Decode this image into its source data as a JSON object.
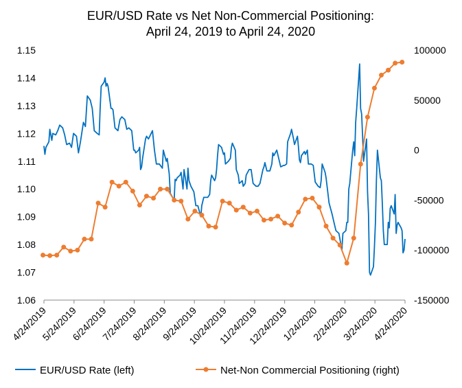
{
  "chart_data": {
    "type": "line",
    "title": "EUR/USD Rate vs Net Non-Commercial Positioning:",
    "subtitle": "April 24, 2019 to April 24, 2020",
    "x_tick_labels": [
      "4/24/2019",
      "5/24/2019",
      "6/24/2019",
      "7/24/2019",
      "8/24/2019",
      "9/24/2019",
      "10/24/2019",
      "11/24/2019",
      "12/24/2019",
      "1/24/2020",
      "2/24/2020",
      "3/24/2020",
      "4/24/2020"
    ],
    "x_range": [
      "2019-04-24",
      "2020-04-24"
    ],
    "y_left_ticks": [
      "1.06",
      "1.07",
      "1.08",
      "1.09",
      "1.10",
      "1.11",
      "1.12",
      "1.13",
      "1.14",
      "1.15"
    ],
    "y_left_range": [
      1.06,
      1.15
    ],
    "y_right_ticks": [
      "-150000",
      "-100000",
      "-50000",
      "0",
      "50000",
      "100000"
    ],
    "y_right_range": [
      -150000,
      100000
    ],
    "grid": false,
    "legend_position": "bottom",
    "series": [
      {
        "name": "EUR/USD Rate (left)",
        "axis": "left",
        "color": "#0070C0",
        "points": [
          [
            "2019-04-24",
            1.1155
          ],
          [
            "2019-04-25",
            1.1125
          ],
          [
            "2019-04-26",
            1.115
          ],
          [
            "2019-04-29",
            1.117
          ],
          [
            "2019-04-30",
            1.1215
          ],
          [
            "2019-05-01",
            1.1195
          ],
          [
            "2019-05-02",
            1.1175
          ],
          [
            "2019-05-03",
            1.12
          ],
          [
            "2019-05-06",
            1.1195
          ],
          [
            "2019-05-08",
            1.121
          ],
          [
            "2019-05-10",
            1.123
          ],
          [
            "2019-05-13",
            1.122
          ],
          [
            "2019-05-15",
            1.1195
          ],
          [
            "2019-05-17",
            1.116
          ],
          [
            "2019-05-20",
            1.1165
          ],
          [
            "2019-05-22",
            1.115
          ],
          [
            "2019-05-24",
            1.12
          ],
          [
            "2019-05-27",
            1.119
          ],
          [
            "2019-05-29",
            1.113
          ],
          [
            "2019-05-31",
            1.117
          ],
          [
            "2019-06-03",
            1.124
          ],
          [
            "2019-06-05",
            1.1225
          ],
          [
            "2019-06-07",
            1.1335
          ],
          [
            "2019-06-10",
            1.132
          ],
          [
            "2019-06-12",
            1.129
          ],
          [
            "2019-06-14",
            1.121
          ],
          [
            "2019-06-17",
            1.12
          ],
          [
            "2019-06-19",
            1.1195
          ],
          [
            "2019-06-20",
            1.129
          ],
          [
            "2019-06-21",
            1.137
          ],
          [
            "2019-06-24",
            1.1385
          ],
          [
            "2019-06-25",
            1.14
          ],
          [
            "2019-06-26",
            1.137
          ],
          [
            "2019-06-27",
            1.138
          ],
          [
            "2019-06-28",
            1.137
          ],
          [
            "2019-07-01",
            1.129
          ],
          [
            "2019-07-02",
            1.129
          ],
          [
            "2019-07-03",
            1.1285
          ],
          [
            "2019-07-05",
            1.122
          ],
          [
            "2019-07-08",
            1.121
          ],
          [
            "2019-07-10",
            1.125
          ],
          [
            "2019-07-12",
            1.126
          ],
          [
            "2019-07-15",
            1.125
          ],
          [
            "2019-07-17",
            1.1215
          ],
          [
            "2019-07-19",
            1.122
          ],
          [
            "2019-07-22",
            1.121
          ],
          [
            "2019-07-24",
            1.114
          ],
          [
            "2019-07-25",
            1.114
          ],
          [
            "2019-07-26",
            1.113
          ],
          [
            "2019-07-29",
            1.114
          ],
          [
            "2019-07-30",
            1.115
          ],
          [
            "2019-07-31",
            1.107
          ],
          [
            "2019-08-01",
            1.108
          ],
          [
            "2019-08-02",
            1.111
          ],
          [
            "2019-08-05",
            1.118
          ],
          [
            "2019-08-06",
            1.119
          ],
          [
            "2019-08-08",
            1.118
          ],
          [
            "2019-08-12",
            1.121
          ],
          [
            "2019-08-14",
            1.114
          ],
          [
            "2019-08-16",
            1.109
          ],
          [
            "2019-08-19",
            1.109
          ],
          [
            "2019-08-22",
            1.1075
          ],
          [
            "2019-08-23",
            1.114
          ],
          [
            "2019-08-26",
            1.11
          ],
          [
            "2019-08-27",
            1.111
          ],
          [
            "2019-08-29",
            1.1055
          ],
          [
            "2019-08-30",
            1.0985
          ],
          [
            "2019-09-03",
            1.096
          ],
          [
            "2019-09-04",
            1.1035
          ],
          [
            "2019-09-05",
            1.103
          ],
          [
            "2019-09-06",
            1.104
          ],
          [
            "2019-09-09",
            1.105
          ],
          [
            "2019-09-10",
            1.106
          ],
          [
            "2019-09-12",
            1.1
          ],
          [
            "2019-09-13",
            1.107
          ],
          [
            "2019-09-16",
            1.1
          ],
          [
            "2019-09-17",
            1.1075
          ],
          [
            "2019-09-18",
            1.103
          ],
          [
            "2019-09-20",
            1.101
          ],
          [
            "2019-09-23",
            1.099
          ],
          [
            "2019-09-25",
            1.094
          ],
          [
            "2019-09-27",
            1.094
          ],
          [
            "2019-09-30",
            1.09
          ],
          [
            "2019-10-01",
            1.094
          ],
          [
            "2019-10-03",
            1.097
          ],
          [
            "2019-10-07",
            1.097
          ],
          [
            "2019-10-09",
            1.098
          ],
          [
            "2019-10-10",
            1.103
          ],
          [
            "2019-10-11",
            1.105
          ],
          [
            "2019-10-14",
            1.103
          ],
          [
            "2019-10-15",
            1.104
          ],
          [
            "2019-10-16",
            1.107
          ],
          [
            "2019-10-17",
            1.112
          ],
          [
            "2019-10-18",
            1.116
          ],
          [
            "2019-10-21",
            1.115
          ],
          [
            "2019-10-23",
            1.1125
          ],
          [
            "2019-10-24",
            1.113
          ],
          [
            "2019-10-25",
            1.109
          ],
          [
            "2019-10-28",
            1.11
          ],
          [
            "2019-10-30",
            1.111
          ],
          [
            "2019-10-31",
            1.115
          ],
          [
            "2019-11-01",
            1.1165
          ],
          [
            "2019-11-04",
            1.114
          ],
          [
            "2019-11-05",
            1.107
          ],
          [
            "2019-11-07",
            1.105
          ],
          [
            "2019-11-08",
            1.102
          ],
          [
            "2019-11-11",
            1.103
          ],
          [
            "2019-11-12",
            1.101
          ],
          [
            "2019-11-14",
            1.102
          ],
          [
            "2019-11-15",
            1.105
          ],
          [
            "2019-11-18",
            1.107
          ],
          [
            "2019-11-20",
            1.107
          ],
          [
            "2019-11-22",
            1.102
          ],
          [
            "2019-11-25",
            1.101
          ],
          [
            "2019-11-27",
            1.101
          ],
          [
            "2019-11-29",
            1.102
          ],
          [
            "2019-12-02",
            1.107
          ],
          [
            "2019-12-03",
            1.108
          ],
          [
            "2019-12-04",
            1.1095
          ],
          [
            "2019-12-06",
            1.1065
          ],
          [
            "2019-12-09",
            1.1065
          ],
          [
            "2019-12-11",
            1.109
          ],
          [
            "2019-12-12",
            1.113
          ],
          [
            "2019-12-13",
            1.112
          ],
          [
            "2019-12-16",
            1.114
          ],
          [
            "2019-12-18",
            1.111
          ],
          [
            "2019-12-20",
            1.108
          ],
          [
            "2019-12-23",
            1.1085
          ],
          [
            "2019-12-24",
            1.1085
          ],
          [
            "2019-12-26",
            1.109
          ],
          [
            "2019-12-27",
            1.117
          ],
          [
            "2019-12-30",
            1.12
          ],
          [
            "2019-12-31",
            1.1215
          ],
          [
            "2020-01-02",
            1.118
          ],
          [
            "2020-01-03",
            1.116
          ],
          [
            "2020-01-06",
            1.119
          ],
          [
            "2020-01-07",
            1.115
          ],
          [
            "2020-01-08",
            1.1105
          ],
          [
            "2020-01-09",
            1.1095
          ],
          [
            "2020-01-10",
            1.112
          ],
          [
            "2020-01-13",
            1.1135
          ],
          [
            "2020-01-14",
            1.1125
          ],
          [
            "2020-01-16",
            1.114
          ],
          [
            "2020-01-17",
            1.109
          ],
          [
            "2020-01-20",
            1.109
          ],
          [
            "2020-01-22",
            1.1085
          ],
          [
            "2020-01-24",
            1.1025
          ],
          [
            "2020-01-27",
            1.101
          ],
          [
            "2020-01-29",
            1.1005
          ],
          [
            "2020-01-30",
            1.103
          ],
          [
            "2020-01-31",
            1.109
          ],
          [
            "2020-02-03",
            1.106
          ],
          [
            "2020-02-04",
            1.104
          ],
          [
            "2020-02-06",
            1.098
          ],
          [
            "2020-02-07",
            1.095
          ],
          [
            "2020-02-10",
            1.091
          ],
          [
            "2020-02-12",
            1.088
          ],
          [
            "2020-02-14",
            1.085
          ],
          [
            "2020-02-17",
            1.084
          ],
          [
            "2020-02-19",
            1.08
          ],
          [
            "2020-02-20",
            1.078
          ],
          [
            "2020-02-21",
            1.084
          ],
          [
            "2020-02-24",
            1.085
          ],
          [
            "2020-02-25",
            1.088
          ],
          [
            "2020-02-26",
            1.088
          ],
          [
            "2020-02-27",
            1.1
          ],
          [
            "2020-02-28",
            1.102
          ],
          [
            "2020-03-02",
            1.114
          ],
          [
            "2020-03-03",
            1.117
          ],
          [
            "2020-03-04",
            1.112
          ],
          [
            "2020-03-05",
            1.124
          ],
          [
            "2020-03-06",
            1.129
          ],
          [
            "2020-03-09",
            1.145
          ],
          [
            "2020-03-10",
            1.129
          ],
          [
            "2020-03-11",
            1.127
          ],
          [
            "2020-03-12",
            1.119
          ],
          [
            "2020-03-13",
            1.11
          ],
          [
            "2020-03-16",
            1.118
          ],
          [
            "2020-03-17",
            1.099
          ],
          [
            "2020-03-18",
            1.091
          ],
          [
            "2020-03-19",
            1.07
          ],
          [
            "2020-03-20",
            1.069
          ],
          [
            "2020-03-23",
            1.072
          ],
          [
            "2020-03-24",
            1.079
          ],
          [
            "2020-03-25",
            1.088
          ],
          [
            "2020-03-26",
            1.103
          ],
          [
            "2020-03-27",
            1.114
          ],
          [
            "2020-03-30",
            1.104
          ],
          [
            "2020-03-31",
            1.103
          ],
          [
            "2020-04-01",
            1.095
          ],
          [
            "2020-04-02",
            1.085
          ],
          [
            "2020-04-03",
            1.08
          ],
          [
            "2020-04-06",
            1.08
          ],
          [
            "2020-04-07",
            1.088
          ],
          [
            "2020-04-08",
            1.086
          ],
          [
            "2020-04-09",
            1.093
          ],
          [
            "2020-04-10",
            1.094
          ],
          [
            "2020-04-13",
            1.091
          ],
          [
            "2020-04-14",
            1.098
          ],
          [
            "2020-04-15",
            1.084
          ],
          [
            "2020-04-16",
            1.087
          ],
          [
            "2020-04-17",
            1.088
          ],
          [
            "2020-04-20",
            1.086
          ],
          [
            "2020-04-21",
            1.085
          ],
          [
            "2020-04-22",
            1.077
          ],
          [
            "2020-04-23",
            1.078
          ],
          [
            "2020-04-24",
            1.082
          ]
        ]
      },
      {
        "name": "Net-Non Commercial Positioning (right)",
        "axis": "right",
        "color": "#ED7D31",
        "points": [
          [
            "2019-04-23",
            -105000
          ],
          [
            "2019-04-30",
            -105500
          ],
          [
            "2019-05-07",
            -105000
          ],
          [
            "2019-05-14",
            -97000
          ],
          [
            "2019-05-21",
            -101000
          ],
          [
            "2019-05-28",
            -100000
          ],
          [
            "2019-06-04",
            -89000
          ],
          [
            "2019-06-11",
            -89000
          ],
          [
            "2019-06-18",
            -53000
          ],
          [
            "2019-06-25",
            -57000
          ],
          [
            "2019-07-02",
            -32000
          ],
          [
            "2019-07-09",
            -36000
          ],
          [
            "2019-07-16",
            -32000
          ],
          [
            "2019-07-23",
            -41000
          ],
          [
            "2019-07-30",
            -55000
          ],
          [
            "2019-08-06",
            -46000
          ],
          [
            "2019-08-13",
            -48000
          ],
          [
            "2019-08-20",
            -39000
          ],
          [
            "2019-08-27",
            -39000
          ],
          [
            "2019-09-03",
            -50000
          ],
          [
            "2019-09-10",
            -51000
          ],
          [
            "2019-09-17",
            -69000
          ],
          [
            "2019-09-24",
            -61000
          ],
          [
            "2019-10-01",
            -65000
          ],
          [
            "2019-10-08",
            -76000
          ],
          [
            "2019-10-15",
            -77000
          ],
          [
            "2019-10-22",
            -51000
          ],
          [
            "2019-10-29",
            -53000
          ],
          [
            "2019-11-05",
            -60000
          ],
          [
            "2019-11-12",
            -57000
          ],
          [
            "2019-11-19",
            -63000
          ],
          [
            "2019-11-26",
            -61000
          ],
          [
            "2019-12-03",
            -70000
          ],
          [
            "2019-12-10",
            -69000
          ],
          [
            "2019-12-17",
            -66000
          ],
          [
            "2019-12-24",
            -73000
          ],
          [
            "2019-12-31",
            -75000
          ],
          [
            "2020-01-07",
            -62000
          ],
          [
            "2020-01-14",
            -49000
          ],
          [
            "2020-01-21",
            -48000
          ],
          [
            "2020-01-28",
            -57000
          ],
          [
            "2020-02-04",
            -76000
          ],
          [
            "2020-02-11",
            -88000
          ],
          [
            "2020-02-18",
            -95000
          ],
          [
            "2020-02-25",
            -113000
          ],
          [
            "2020-03-03",
            -88000
          ],
          [
            "2020-03-10",
            -14000
          ],
          [
            "2020-03-17",
            33000
          ],
          [
            "2020-03-24",
            62000
          ],
          [
            "2020-03-31",
            75000
          ],
          [
            "2020-04-07",
            80000
          ],
          [
            "2020-04-14",
            87000
          ],
          [
            "2020-04-21",
            88000
          ]
        ]
      }
    ]
  }
}
